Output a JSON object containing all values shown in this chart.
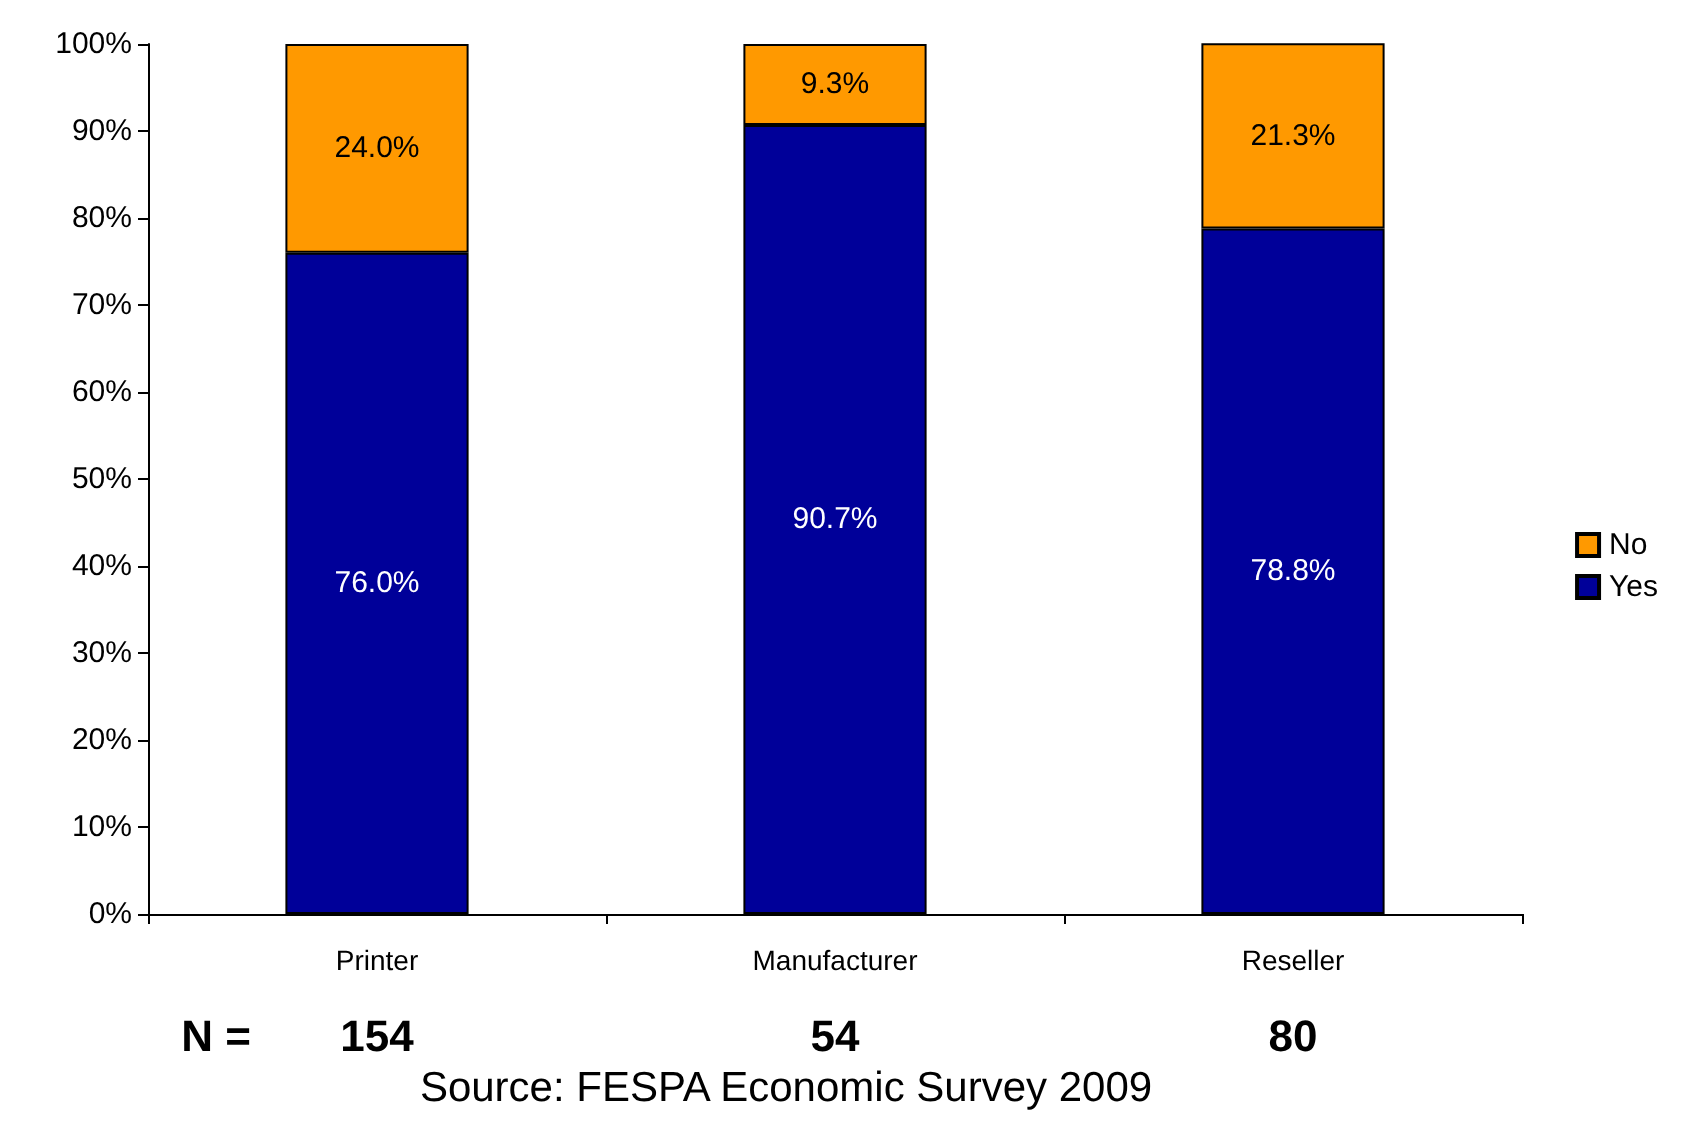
{
  "chart_data": {
    "type": "bar",
    "stacked": true,
    "categories": [
      "Printer",
      "Manufacturer",
      "Reseller"
    ],
    "series": [
      {
        "name": "Yes",
        "color": "#000099",
        "values": [
          76.0,
          90.7,
          78.8
        ],
        "value_labels": [
          "76.0%",
          "90.7%",
          "78.8%"
        ]
      },
      {
        "name": "No",
        "color": "#ff9900",
        "values": [
          24.0,
          9.3,
          21.3
        ],
        "value_labels": [
          "24.0%",
          "9.3%",
          "21.3%"
        ]
      }
    ],
    "ylim": [
      0,
      100
    ],
    "yticks": [
      {
        "value": 0,
        "label": "0%"
      },
      {
        "value": 10,
        "label": "10%"
      },
      {
        "value": 20,
        "label": "20%"
      },
      {
        "value": 30,
        "label": "30%"
      },
      {
        "value": 40,
        "label": "40%"
      },
      {
        "value": 50,
        "label": "50%"
      },
      {
        "value": 60,
        "label": "60%"
      },
      {
        "value": 70,
        "label": "70%"
      },
      {
        "value": 80,
        "label": "80%"
      },
      {
        "value": 90,
        "label": "90%"
      },
      {
        "value": 100,
        "label": "100%"
      }
    ],
    "grid": false,
    "legend": "right",
    "annotations": [
      "N =",
      "154",
      "54",
      "80",
      "Source: FESPA Economic Survey 2009"
    ]
  }
}
